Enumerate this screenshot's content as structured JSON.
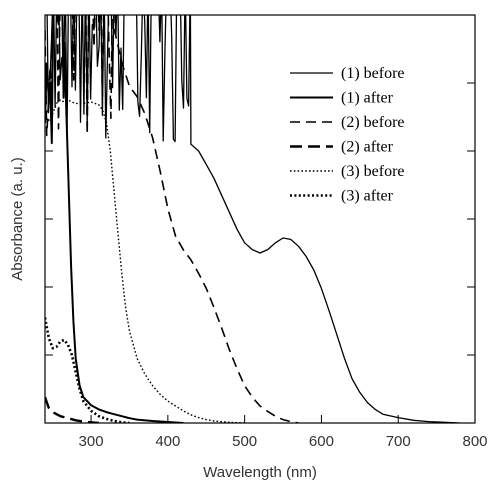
{
  "chart_data": {
    "type": "line",
    "xlabel": "Wavelength (nm)",
    "ylabel": "Absorbance (a. u.)",
    "xlim": [
      240,
      800
    ],
    "ylim": [
      0,
      6
    ],
    "x_ticks": [
      300,
      400,
      500,
      600,
      700,
      800
    ],
    "y_ticks": [
      1,
      2,
      3,
      4,
      5
    ],
    "show_y_tick_labels": false,
    "grid": false,
    "legend_position": "top-right",
    "series": [
      {
        "name": "(1) before",
        "style": "solid-thin",
        "color": "#000000",
        "noisy_until": 430,
        "points": [
          [
            240,
            6.5
          ],
          [
            420,
            6.5
          ],
          [
            430,
            4.1
          ],
          [
            440,
            4.0
          ],
          [
            450,
            3.8
          ],
          [
            460,
            3.6
          ],
          [
            470,
            3.35
          ],
          [
            480,
            3.1
          ],
          [
            490,
            2.85
          ],
          [
            500,
            2.65
          ],
          [
            510,
            2.55
          ],
          [
            520,
            2.5
          ],
          [
            530,
            2.55
          ],
          [
            540,
            2.65
          ],
          [
            550,
            2.72
          ],
          [
            560,
            2.7
          ],
          [
            570,
            2.6
          ],
          [
            580,
            2.45
          ],
          [
            590,
            2.25
          ],
          [
            600,
            1.98
          ],
          [
            610,
            1.65
          ],
          [
            620,
            1.3
          ],
          [
            630,
            0.95
          ],
          [
            640,
            0.65
          ],
          [
            650,
            0.45
          ],
          [
            660,
            0.3
          ],
          [
            670,
            0.2
          ],
          [
            680,
            0.13
          ],
          [
            700,
            0.08
          ],
          [
            720,
            0.04
          ],
          [
            740,
            0.02
          ],
          [
            760,
            0.01
          ],
          [
            780,
            0.0
          ]
        ]
      },
      {
        "name": "(1) after",
        "style": "solid",
        "color": "#000000",
        "noisy_until": 265,
        "points": [
          [
            240,
            6.5
          ],
          [
            262,
            6.5
          ],
          [
            265,
            5.6
          ],
          [
            268,
            4.5
          ],
          [
            271,
            3.4
          ],
          [
            274,
            2.3
          ],
          [
            277,
            1.5
          ],
          [
            280,
            0.95
          ],
          [
            285,
            0.55
          ],
          [
            290,
            0.38
          ],
          [
            300,
            0.26
          ],
          [
            310,
            0.2
          ],
          [
            320,
            0.16
          ],
          [
            330,
            0.13
          ],
          [
            340,
            0.1
          ],
          [
            350,
            0.07
          ],
          [
            360,
            0.05
          ],
          [
            380,
            0.03
          ],
          [
            400,
            0.015
          ],
          [
            420,
            0.0
          ]
        ]
      },
      {
        "name": "(2) before",
        "style": "dashed-thin",
        "color": "#000000",
        "noisy_until": 330,
        "points": [
          [
            240,
            6.5
          ],
          [
            320,
            6.5
          ],
          [
            330,
            5.8
          ],
          [
            340,
            5.3
          ],
          [
            350,
            4.95
          ],
          [
            360,
            4.8
          ],
          [
            370,
            4.55
          ],
          [
            380,
            4.2
          ],
          [
            390,
            3.7
          ],
          [
            400,
            3.15
          ],
          [
            410,
            2.75
          ],
          [
            420,
            2.55
          ],
          [
            430,
            2.4
          ],
          [
            440,
            2.2
          ],
          [
            450,
            1.98
          ],
          [
            460,
            1.7
          ],
          [
            470,
            1.4
          ],
          [
            480,
            1.08
          ],
          [
            490,
            0.8
          ],
          [
            500,
            0.55
          ],
          [
            510,
            0.38
          ],
          [
            520,
            0.25
          ],
          [
            530,
            0.17
          ],
          [
            540,
            0.1
          ],
          [
            550,
            0.05
          ],
          [
            560,
            0.02
          ],
          [
            570,
            0.0
          ]
        ]
      },
      {
        "name": "(2) after",
        "style": "dashed",
        "color": "#000000",
        "noisy_until": 0,
        "points": [
          [
            240,
            0.38
          ],
          [
            245,
            0.22
          ],
          [
            250,
            0.16
          ],
          [
            260,
            0.1
          ],
          [
            270,
            0.07
          ],
          [
            280,
            0.04
          ],
          [
            290,
            0.02
          ],
          [
            300,
            0.01
          ],
          [
            310,
            0.0
          ]
        ]
      },
      {
        "name": "(3) before",
        "style": "dotted-thin",
        "color": "#000000",
        "noisy_until": 0,
        "points": [
          [
            240,
            4.42
          ],
          [
            245,
            4.45
          ],
          [
            250,
            4.55
          ],
          [
            255,
            4.7
          ],
          [
            260,
            4.75
          ],
          [
            265,
            4.72
          ],
          [
            270,
            4.75
          ],
          [
            275,
            4.72
          ],
          [
            280,
            4.7
          ],
          [
            290,
            4.7
          ],
          [
            300,
            4.72
          ],
          [
            310,
            4.68
          ],
          [
            315,
            4.6
          ],
          [
            320,
            4.42
          ],
          [
            325,
            4.0
          ],
          [
            330,
            3.4
          ],
          [
            335,
            2.8
          ],
          [
            340,
            2.2
          ],
          [
            345,
            1.7
          ],
          [
            350,
            1.35
          ],
          [
            360,
            0.95
          ],
          [
            370,
            0.72
          ],
          [
            380,
            0.55
          ],
          [
            390,
            0.42
          ],
          [
            400,
            0.32
          ],
          [
            410,
            0.25
          ],
          [
            420,
            0.18
          ],
          [
            430,
            0.12
          ],
          [
            440,
            0.08
          ],
          [
            450,
            0.05
          ],
          [
            460,
            0.03
          ],
          [
            480,
            0.01
          ],
          [
            500,
            0.0
          ]
        ]
      },
      {
        "name": "(3) after",
        "style": "dotted",
        "color": "#000000",
        "noisy_until": 0,
        "points": [
          [
            240,
            1.55
          ],
          [
            245,
            1.25
          ],
          [
            250,
            1.1
          ],
          [
            255,
            1.12
          ],
          [
            260,
            1.2
          ],
          [
            265,
            1.22
          ],
          [
            270,
            1.15
          ],
          [
            275,
            1.0
          ],
          [
            280,
            0.75
          ],
          [
            285,
            0.5
          ],
          [
            290,
            0.32
          ],
          [
            300,
            0.18
          ],
          [
            310,
            0.1
          ],
          [
            320,
            0.06
          ],
          [
            330,
            0.03
          ],
          [
            340,
            0.01
          ],
          [
            350,
            0.0
          ]
        ]
      }
    ]
  }
}
